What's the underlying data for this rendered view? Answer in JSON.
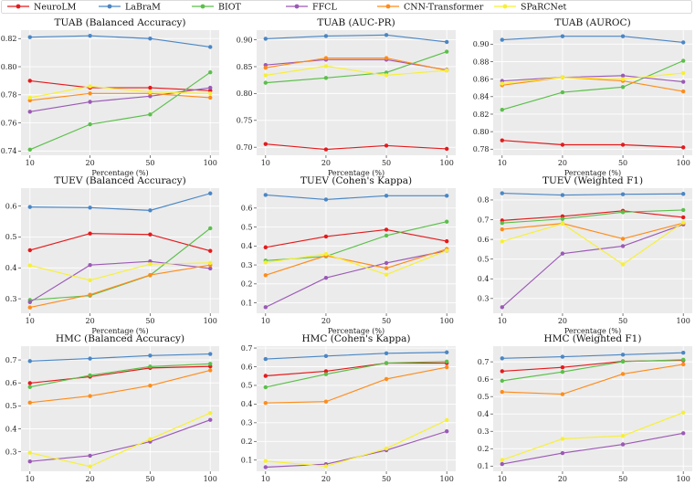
{
  "legend": {
    "entries": [
      {
        "name": "NeuroLM",
        "color": "#e41a1c"
      },
      {
        "name": "LaBraM",
        "color": "#4a86c5"
      },
      {
        "name": "BIOT",
        "color": "#5bbf4a"
      },
      {
        "name": "FFCL",
        "color": "#9b59b6"
      },
      {
        "name": "CNN-Transformer",
        "color": "#ff8c1a"
      },
      {
        "name": "SPaRCNet",
        "color": "#f7f032"
      }
    ]
  },
  "chart_data": [
    {
      "type": "line",
      "title": "TUAB (Balanced Accuracy)",
      "xlabel": "Percentage (%)",
      "categories": [
        "10",
        "20",
        "50",
        "100"
      ],
      "ylim": [
        0.737,
        0.826
      ],
      "yticks": [
        0.74,
        0.76,
        0.78,
        0.8,
        0.82
      ],
      "ytick_labels": [
        "0.74",
        "0.76",
        "0.78",
        "0.80",
        "0.82"
      ],
      "series": [
        {
          "name": "NeuroLM",
          "values": [
            0.79,
            0.785,
            0.785,
            0.783
          ]
        },
        {
          "name": "LaBraM",
          "values": [
            0.821,
            0.822,
            0.82,
            0.814
          ]
        },
        {
          "name": "BIOT",
          "values": [
            0.741,
            0.759,
            0.766,
            0.796
          ]
        },
        {
          "name": "FFCL",
          "values": [
            0.768,
            0.775,
            0.779,
            0.785
          ]
        },
        {
          "name": "CNN-Transformer",
          "values": [
            0.776,
            0.781,
            0.781,
            0.778
          ]
        },
        {
          "name": "SPaRCNet",
          "values": [
            0.778,
            0.786,
            0.782,
            0.781
          ]
        }
      ]
    },
    {
      "type": "line",
      "title": "TUAB (AUC-PR)",
      "xlabel": "Percentage (%)",
      "categories": [
        "10",
        "20",
        "50",
        "100"
      ],
      "ylim": [
        0.685,
        0.918
      ],
      "yticks": [
        0.7,
        0.75,
        0.8,
        0.85,
        0.9
      ],
      "ytick_labels": [
        "0.70",
        "0.75",
        "0.80",
        "0.85",
        "0.90"
      ],
      "series": [
        {
          "name": "NeuroLM",
          "values": [
            0.706,
            0.696,
            0.703,
            0.697
          ]
        },
        {
          "name": "LaBraM",
          "values": [
            0.902,
            0.907,
            0.909,
            0.896
          ]
        },
        {
          "name": "BIOT",
          "values": [
            0.82,
            0.829,
            0.839,
            0.878
          ]
        },
        {
          "name": "FFCL",
          "values": [
            0.853,
            0.863,
            0.863,
            0.844
          ]
        },
        {
          "name": "CNN-Transformer",
          "values": [
            0.848,
            0.866,
            0.866,
            0.843
          ]
        },
        {
          "name": "SPaRCNet",
          "values": [
            0.834,
            0.851,
            0.834,
            0.843
          ]
        }
      ]
    },
    {
      "type": "line",
      "title": "TUAB (AUROC)",
      "xlabel": "Percentage (%)",
      "categories": [
        "10",
        "20",
        "50",
        "100"
      ],
      "ylim": [
        0.773,
        0.916
      ],
      "yticks": [
        0.78,
        0.8,
        0.82,
        0.84,
        0.86,
        0.88,
        0.9
      ],
      "ytick_labels": [
        "0.78",
        "0.80",
        "0.82",
        "0.84",
        "0.86",
        "0.88",
        "0.90"
      ],
      "series": [
        {
          "name": "NeuroLM",
          "values": [
            0.79,
            0.785,
            0.785,
            0.782
          ]
        },
        {
          "name": "LaBraM",
          "values": [
            0.905,
            0.909,
            0.909,
            0.902
          ]
        },
        {
          "name": "BIOT",
          "values": [
            0.825,
            0.845,
            0.851,
            0.881
          ]
        },
        {
          "name": "FFCL",
          "values": [
            0.858,
            0.862,
            0.864,
            0.857
          ]
        },
        {
          "name": "CNN-Transformer",
          "values": [
            0.853,
            0.862,
            0.858,
            0.846
          ]
        },
        {
          "name": "SPaRCNet",
          "values": [
            0.855,
            0.862,
            0.86,
            0.867
          ]
        }
      ]
    },
    {
      "type": "line",
      "title": "TUEV (Balanced Accuracy)",
      "xlabel": "Percentage (%)",
      "categories": [
        "10",
        "20",
        "50",
        "100"
      ],
      "ylim": [
        0.253,
        0.658
      ],
      "yticks": [
        0.3,
        0.4,
        0.5,
        0.6
      ],
      "ytick_labels": [
        "0.3",
        "0.4",
        "0.5",
        "0.6"
      ],
      "series": [
        {
          "name": "NeuroLM",
          "values": [
            0.457,
            0.511,
            0.508,
            0.455
          ]
        },
        {
          "name": "LaBraM",
          "values": [
            0.597,
            0.595,
            0.586,
            0.641
          ]
        },
        {
          "name": "BIOT",
          "values": [
            0.296,
            0.31,
            0.376,
            0.528
          ]
        },
        {
          "name": "FFCL",
          "values": [
            0.289,
            0.409,
            0.421,
            0.398
          ]
        },
        {
          "name": "CNN-Transformer",
          "values": [
            0.272,
            0.313,
            0.377,
            0.409
          ]
        },
        {
          "name": "SPaRCNet",
          "values": [
            0.408,
            0.36,
            0.412,
            0.416
          ]
        }
      ]
    },
    {
      "type": "line",
      "title": "TUEV (Cohen's Kappa)",
      "xlabel": "Percentage (%)",
      "categories": [
        "10",
        "20",
        "50",
        "100"
      ],
      "ylim": [
        0.045,
        0.705
      ],
      "yticks": [
        0.1,
        0.2,
        0.3,
        0.4,
        0.5,
        0.6
      ],
      "ytick_labels": [
        "0.1",
        "0.2",
        "0.3",
        "0.4",
        "0.5",
        "0.6"
      ],
      "series": [
        {
          "name": "NeuroLM",
          "values": [
            0.393,
            0.45,
            0.486,
            0.425
          ]
        },
        {
          "name": "LaBraM",
          "values": [
            0.669,
            0.645,
            0.665,
            0.665
          ]
        },
        {
          "name": "BIOT",
          "values": [
            0.323,
            0.345,
            0.455,
            0.528
          ]
        },
        {
          "name": "FFCL",
          "values": [
            0.077,
            0.232,
            0.31,
            0.375
          ]
        },
        {
          "name": "CNN-Transformer",
          "values": [
            0.246,
            0.349,
            0.283,
            0.384
          ]
        },
        {
          "name": "SPaRCNet",
          "values": [
            0.313,
            0.358,
            0.249,
            0.376
          ]
        }
      ]
    },
    {
      "type": "line",
      "title": "TUEV (Weighted F1)",
      "xlabel": "Percentage (%)",
      "categories": [
        "10",
        "20",
        "50",
        "100"
      ],
      "ylim": [
        0.225,
        0.86
      ],
      "yticks": [
        0.3,
        0.4,
        0.5,
        0.6,
        0.7,
        0.8
      ],
      "ytick_labels": [
        "0.3",
        "0.4",
        "0.5",
        "0.6",
        "0.7",
        "0.8"
      ],
      "series": [
        {
          "name": "NeuroLM",
          "values": [
            0.696,
            0.717,
            0.745,
            0.712
          ]
        },
        {
          "name": "LaBraM",
          "values": [
            0.834,
            0.825,
            0.829,
            0.831
          ]
        },
        {
          "name": "BIOT",
          "values": [
            0.683,
            0.704,
            0.738,
            0.749
          ]
        },
        {
          "name": "FFCL",
          "values": [
            0.256,
            0.528,
            0.566,
            0.676
          ]
        },
        {
          "name": "CNN-Transformer",
          "values": [
            0.651,
            0.681,
            0.603,
            0.683
          ]
        },
        {
          "name": "SPaRCNet",
          "values": [
            0.59,
            0.68,
            0.473,
            0.686
          ]
        }
      ]
    },
    {
      "type": "line",
      "title": "HMC (Balanced Accuracy)",
      "xlabel": "Percentage (%)",
      "categories": [
        "10",
        "20",
        "50",
        "100"
      ],
      "ylim": [
        0.215,
        0.76
      ],
      "yticks": [
        0.3,
        0.4,
        0.5,
        0.6,
        0.7
      ],
      "ytick_labels": [
        "0.3",
        "0.4",
        "0.5",
        "0.6",
        "0.7"
      ],
      "series": [
        {
          "name": "NeuroLM",
          "values": [
            0.599,
            0.627,
            0.665,
            0.672
          ]
        },
        {
          "name": "LaBraM",
          "values": [
            0.695,
            0.706,
            0.719,
            0.726
          ]
        },
        {
          "name": "BIOT",
          "values": [
            0.582,
            0.633,
            0.671,
            0.683
          ]
        },
        {
          "name": "FFCL",
          "values": [
            0.258,
            0.283,
            0.344,
            0.439
          ]
        },
        {
          "name": "CNN-Transformer",
          "values": [
            0.514,
            0.543,
            0.588,
            0.655
          ]
        },
        {
          "name": "SPaRCNet",
          "values": [
            0.296,
            0.236,
            0.355,
            0.469
          ]
        }
      ]
    },
    {
      "type": "line",
      "title": "HMC (Cohen's Kappa)",
      "xlabel": "Percentage (%)",
      "categories": [
        "10",
        "20",
        "50",
        "100"
      ],
      "ylim": [
        0.04,
        0.71
      ],
      "yticks": [
        0.1,
        0.2,
        0.3,
        0.4,
        0.5,
        0.6,
        0.7
      ],
      "ytick_labels": [
        "0.1",
        "0.2",
        "0.3",
        "0.4",
        "0.5",
        "0.6",
        "0.7"
      ],
      "series": [
        {
          "name": "NeuroLM",
          "values": [
            0.551,
            0.576,
            0.619,
            0.619
          ]
        },
        {
          "name": "LaBraM",
          "values": [
            0.641,
            0.657,
            0.672,
            0.677
          ]
        },
        {
          "name": "BIOT",
          "values": [
            0.49,
            0.56,
            0.62,
            0.628
          ]
        },
        {
          "name": "FFCL",
          "values": [
            0.062,
            0.078,
            0.153,
            0.254
          ]
        },
        {
          "name": "CNN-Transformer",
          "values": [
            0.406,
            0.413,
            0.534,
            0.597
          ]
        },
        {
          "name": "SPaRCNet",
          "values": [
            0.095,
            0.067,
            0.162,
            0.314
          ]
        }
      ]
    },
    {
      "type": "line",
      "title": "HMC (Weighted F1)",
      "xlabel": "Percentage (%)",
      "categories": [
        "10",
        "20",
        "50",
        "100"
      ],
      "ylim": [
        0.07,
        0.79
      ],
      "yticks": [
        0.1,
        0.2,
        0.3,
        0.4,
        0.5,
        0.6,
        0.7
      ],
      "ytick_labels": [
        "0.1",
        "0.2",
        "0.3",
        "0.4",
        "0.5",
        "0.6",
        "0.7"
      ],
      "series": [
        {
          "name": "NeuroLM",
          "values": [
            0.646,
            0.668,
            0.703,
            0.708
          ]
        },
        {
          "name": "LaBraM",
          "values": [
            0.72,
            0.729,
            0.741,
            0.752
          ]
        },
        {
          "name": "BIOT",
          "values": [
            0.591,
            0.642,
            0.701,
            0.712
          ]
        },
        {
          "name": "FFCL",
          "values": [
            0.112,
            0.175,
            0.225,
            0.289
          ]
        },
        {
          "name": "CNN-Transformer",
          "values": [
            0.527,
            0.514,
            0.63,
            0.685
          ]
        },
        {
          "name": "SPaRCNet",
          "values": [
            0.135,
            0.257,
            0.274,
            0.408
          ]
        }
      ]
    }
  ]
}
